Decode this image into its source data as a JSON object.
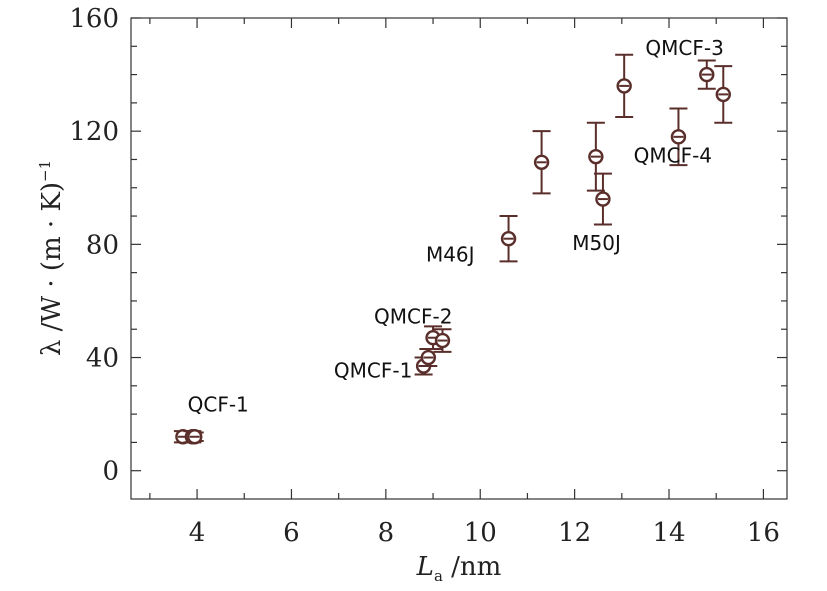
{
  "chart_data": {
    "type": "scatter",
    "title": "",
    "xlabel": "L",
    "xlabel_sub": "a",
    "xlabel_unit": " /nm",
    "ylabel": "λ /W · (m · K)",
    "ylabel_sup": "−1",
    "xlim": [
      2.6,
      16.5
    ],
    "ylim": [
      -10,
      160
    ],
    "x_ticks": [
      4,
      6,
      8,
      10,
      12,
      14,
      16
    ],
    "x_tick_labels": [
      "4",
      "6",
      "8",
      "10",
      "12",
      "14",
      "16"
    ],
    "y_ticks": [
      0,
      40,
      80,
      120,
      160
    ],
    "y_tick_labels": [
      "0",
      "40",
      "80",
      "120",
      "160"
    ],
    "grid": false,
    "marker_color": "#5a2e2a",
    "points": [
      {
        "x": 3.7,
        "y": 12,
        "yerr": 2,
        "xerr": 0.15
      },
      {
        "x": 3.9,
        "y": 12,
        "yerr": 2,
        "xerr": 0.15
      },
      {
        "x": 3.95,
        "y": 12,
        "yerr": 1.5,
        "xerr": 0.15
      },
      {
        "x": 8.8,
        "y": 37,
        "yerr": 3
      },
      {
        "x": 8.9,
        "y": 40,
        "yerr": 3
      },
      {
        "x": 9.0,
        "y": 47,
        "yerr": 4
      },
      {
        "x": 9.2,
        "y": 46,
        "yerr": 4
      },
      {
        "x": 10.6,
        "y": 82,
        "yerr": 8
      },
      {
        "x": 11.3,
        "y": 109,
        "yerr": 11
      },
      {
        "x": 12.45,
        "y": 111,
        "yerr": 12
      },
      {
        "x": 12.6,
        "y": 96,
        "yerr": 9
      },
      {
        "x": 13.05,
        "y": 136,
        "yerr": 11
      },
      {
        "x": 14.2,
        "y": 118,
        "yerr": 10
      },
      {
        "x": 14.8,
        "y": 140,
        "yerr": 5
      },
      {
        "x": 15.15,
        "y": 133,
        "yerr": 10
      }
    ],
    "annotations": [
      {
        "text": "QCF-1",
        "x": 3.8,
        "y": 21
      },
      {
        "text": "QMCF-1",
        "x": 6.9,
        "y": 33
      },
      {
        "text": "QMCF-2",
        "x": 7.75,
        "y": 52
      },
      {
        "text": "M46J",
        "x": 8.85,
        "y": 74
      },
      {
        "text": "M50J",
        "x": 11.95,
        "y": 78
      },
      {
        "text": "QMCF-4",
        "x": 13.25,
        "y": 109
      },
      {
        "text": "QMCF-3",
        "x": 13.5,
        "y": 147
      }
    ]
  }
}
